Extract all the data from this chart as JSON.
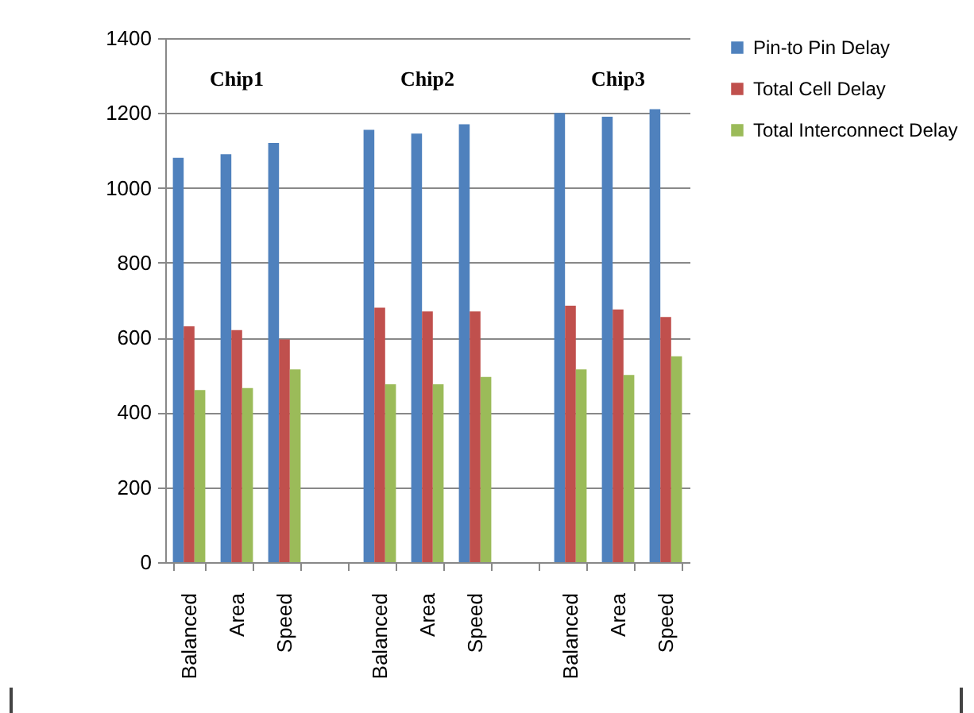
{
  "chart_data": {
    "type": "bar",
    "categories": [
      "Balanced",
      "Area",
      "Speed",
      null,
      "Balanced",
      "Area",
      "Speed",
      null,
      "Balanced",
      "Area",
      "Speed"
    ],
    "series": [
      {
        "name": "Pin-to Pin Delay",
        "color": "#4f81bd",
        "values": [
          1080,
          1090,
          1120,
          null,
          1155,
          1145,
          1170,
          null,
          1200,
          1190,
          1210
        ]
      },
      {
        "name": "Total Cell Delay",
        "color": "#c0504d",
        "values": [
          630,
          620,
          595,
          null,
          680,
          670,
          670,
          null,
          685,
          675,
          655
        ]
      },
      {
        "name": "Total Interconnect Delay",
        "color": "#9bbb59",
        "values": [
          460,
          465,
          515,
          null,
          475,
          475,
          495,
          null,
          515,
          500,
          550
        ]
      }
    ],
    "annotations": [
      "Chip1",
      "Chip2",
      "Chip3"
    ],
    "ylim": [
      0,
      1400
    ],
    "yticks": [
      0,
      200,
      400,
      600,
      800,
      1000,
      1200,
      1400
    ],
    "grid": "y",
    "legend": "right"
  }
}
